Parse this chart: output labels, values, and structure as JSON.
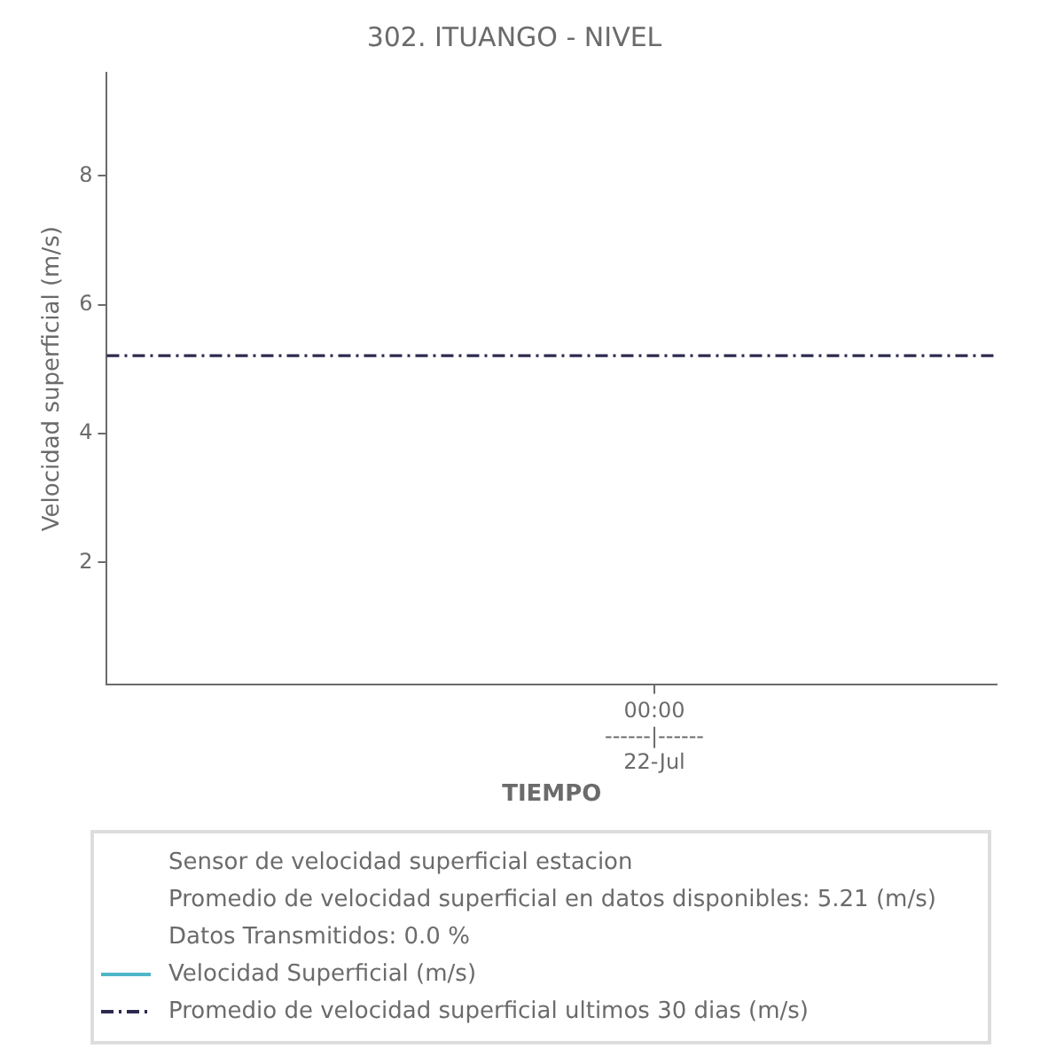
{
  "chart_data": {
    "type": "line",
    "title": "302. ITUANGO - NIVEL",
    "xlabel": "TIEMPO",
    "ylabel": "Velocidad superficial (m/s)",
    "annotations": [
      "Sensor de velocidad superficial estacion",
      "Promedio de velocidad superficial en datos disponibles: 5.21 (m/s)",
      "Datos Transmitidos: 0.0 %"
    ],
    "categories": [
      null,
      null,
      null,
      null,
      null,
      null,
      null,
      null,
      "00:00\n------|------\n22-Jul",
      null,
      null,
      null,
      null,
      null
    ],
    "series": [
      {
        "name": "Velocidad Superficial (m/s)",
        "color": "#4fb6c8",
        "values": [
          null,
          null,
          null,
          null,
          null,
          null,
          null,
          null,
          null,
          null,
          null,
          null,
          null,
          null
        ],
        "line_style": "solid"
      },
      {
        "name": "Promedio de velocidad superficial ultimos 30 dias (m/s)",
        "color": "#2d2a4f",
        "values": [
          5.21,
          5.21,
          5.21,
          5.21,
          5.21,
          5.21,
          5.21,
          5.21,
          5.21,
          5.21,
          5.21,
          5.21,
          5.21,
          5.21
        ],
        "line_style": "dashed"
      }
    ],
    "ylim": [
      0.1,
      9.6
    ],
    "yticks": [
      2,
      4,
      6,
      8
    ],
    "grid": false,
    "legend": "bottom",
    "marker": "none"
  }
}
